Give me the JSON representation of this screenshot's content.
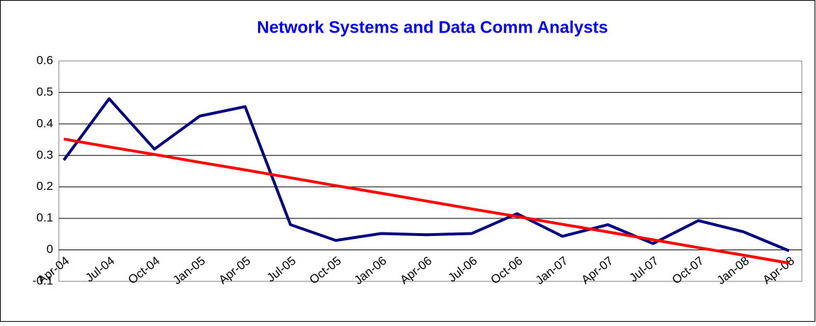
{
  "chart_data": {
    "type": "line",
    "title": "Network Systems and Data Comm Analysts",
    "categories": [
      "Apr-04",
      "Jul-04",
      "Oct-04",
      "Jan-05",
      "Apr-05",
      "Jul-05",
      "Oct-05",
      "Jan-06",
      "Apr-06",
      "Jul-06",
      "Oct-06",
      "Jan-07",
      "Apr-07",
      "Jul-07",
      "Oct-07",
      "Jan-08",
      "Apr-08"
    ],
    "series": [
      {
        "color": "#000080",
        "values": [
          0.285,
          0.48,
          0.32,
          0.425,
          0.455,
          0.08,
          0.03,
          0.052,
          0.048,
          0.052,
          0.115,
          0.043,
          0.08,
          0.02,
          0.093,
          0.057,
          -0.003
        ]
      },
      {
        "color": "#ff0000",
        "values": [
          0.352,
          0.327,
          0.303,
          0.278,
          0.254,
          0.229,
          0.204,
          0.18,
          0.155,
          0.13,
          0.106,
          0.081,
          0.057,
          0.032,
          0.007,
          -0.017,
          -0.042
        ]
      }
    ],
    "ylim": [
      -0.1,
      0.6
    ],
    "yticks": [
      -0.1,
      0,
      0.1,
      0.2,
      0.3,
      0.4,
      0.5,
      0.6
    ],
    "grid": true
  }
}
